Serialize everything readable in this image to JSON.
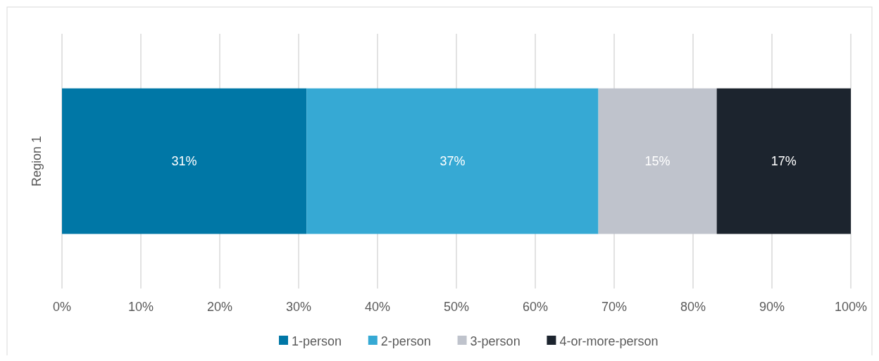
{
  "chart_data": {
    "type": "bar",
    "orientation": "horizontal",
    "stacked": true,
    "categories": [
      "Region 1"
    ],
    "series": [
      {
        "name": "1-person",
        "color": "#0077a6",
        "values": [
          31
        ]
      },
      {
        "name": "2-person",
        "color": "#36a9d4",
        "values": [
          37
        ]
      },
      {
        "name": "3-person",
        "color": "#bfc3cc",
        "values": [
          15
        ]
      },
      {
        "name": "4-or-more-person",
        "color": "#1c242e",
        "values": [
          17
        ]
      }
    ],
    "xlim": [
      0,
      100
    ],
    "xticks": [
      {
        "value": 0,
        "label": "0%"
      },
      {
        "value": 10,
        "label": "10%"
      },
      {
        "value": 20,
        "label": "20%"
      },
      {
        "value": 30,
        "label": "30%"
      },
      {
        "value": 40,
        "label": "40%"
      },
      {
        "value": 50,
        "label": "50%"
      },
      {
        "value": 60,
        "label": "60%"
      },
      {
        "value": 70,
        "label": "70%"
      },
      {
        "value": 80,
        "label": "80%"
      },
      {
        "value": 90,
        "label": "90%"
      },
      {
        "value": 100,
        "label": "100%"
      }
    ],
    "value_labels": [
      "31%",
      "37%",
      "15%",
      "17%"
    ],
    "grid": "x",
    "legend": "bottom"
  }
}
